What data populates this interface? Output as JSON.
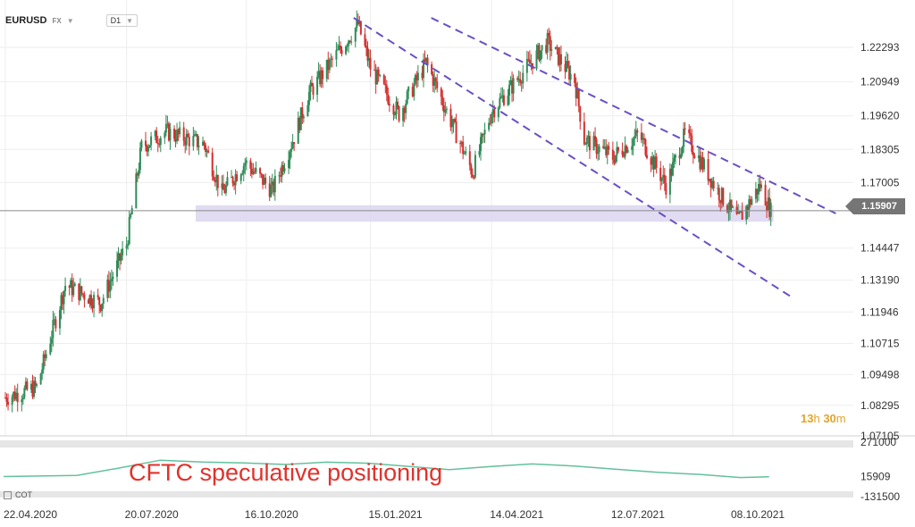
{
  "toolbar": {
    "symbol": "EURUSD",
    "market": "FX",
    "timeframe": "D1"
  },
  "countdown": {
    "hours": "13",
    "h_unit": "h",
    "minutes": "30",
    "m_unit": "m"
  },
  "indicator": {
    "label": "CFTC speculative positioning",
    "name": "COT"
  },
  "current_price": "1.15907",
  "colors": {
    "up": "#2e8b57",
    "down": "#d32f2f",
    "channel": "#6a4fc4",
    "zone": "#dcd6f0",
    "cot_line": "#62c19b",
    "grid": "#eeeeee"
  },
  "chart_data": [
    {
      "type": "candlestick",
      "title": "",
      "x_tick_labels": [
        "22.04.2020",
        "20.07.2020",
        "16.10.2020",
        "15.01.2021",
        "14.04.2021",
        "12.07.2021",
        "08.10.2021"
      ],
      "y_tick_labels": [
        "1.22293",
        "1.20949",
        "1.19620",
        "1.18305",
        "1.17005",
        "1.15907",
        "1.14447",
        "1.13190",
        "1.11946",
        "1.10715",
        "1.09498",
        "1.08295",
        "1.07105"
      ],
      "ylim": [
        1.071,
        1.2345
      ],
      "grid": true,
      "close_path": [
        {
          "date": "22.04.2020",
          "close": 1.086
        },
        {
          "date": "15.05.2020",
          "close": 1.09
        },
        {
          "date": "05.06.2020",
          "close": 1.13
        },
        {
          "date": "01.07.2020",
          "close": 1.123
        },
        {
          "date": "20.07.2020",
          "close": 1.146
        },
        {
          "date": "31.07.2020",
          "close": 1.184
        },
        {
          "date": "18.08.2020",
          "close": 1.19
        },
        {
          "date": "15.09.2020",
          "close": 1.185
        },
        {
          "date": "28.09.2020",
          "close": 1.166
        },
        {
          "date": "15.10.2020",
          "close": 1.178
        },
        {
          "date": "04.11.2020",
          "close": 1.167
        },
        {
          "date": "20.11.2020",
          "close": 1.188
        },
        {
          "date": "01.12.2020",
          "close": 1.205
        },
        {
          "date": "06.01.2021",
          "close": 1.232
        },
        {
          "date": "15.01.2021",
          "close": 1.215
        },
        {
          "date": "05.02.2021",
          "close": 1.197
        },
        {
          "date": "25.02.2021",
          "close": 1.217
        },
        {
          "date": "31.03.2021",
          "close": 1.174
        },
        {
          "date": "14.04.2021",
          "close": 1.198
        },
        {
          "date": "25.05.2021",
          "close": 1.225
        },
        {
          "date": "14.06.2021",
          "close": 1.21
        },
        {
          "date": "21.06.2021",
          "close": 1.187
        },
        {
          "date": "12.07.2021",
          "close": 1.18
        },
        {
          "date": "31.07.2021",
          "close": 1.189
        },
        {
          "date": "20.08.2021",
          "close": 1.169
        },
        {
          "date": "03.09.2021",
          "close": 1.189
        },
        {
          "date": "28.09.2021",
          "close": 1.166
        },
        {
          "date": "12.10.2021",
          "close": 1.155
        },
        {
          "date": "28.10.2021",
          "close": 1.169
        },
        {
          "date": "05.11.2021",
          "close": 1.159
        }
      ],
      "support_zone": [
        1.1548,
        1.1612
      ],
      "channel_lines": [
        {
          "from": {
            "date": "04.01.2021",
            "value": 1.2345
          },
          "to": {
            "date": "23.11.2021",
            "value": 1.1248
          }
        },
        {
          "from": {
            "date": "02.03.2021",
            "value": 1.2345
          },
          "to": {
            "date": "24.12.2021",
            "value": 1.158
          }
        }
      ],
      "current_price": 1.15907
    },
    {
      "type": "line",
      "title": "CFTC speculative positioning",
      "y_tick_labels": [
        "271000",
        "15909",
        "-131500"
      ],
      "ylim": [
        -131500,
        271000
      ],
      "series": [
        {
          "name": "COT",
          "points": [
            {
              "date": "22.04.2020",
              "value": 17000
            },
            {
              "date": "15.06.2020",
              "value": 25000
            },
            {
              "date": "15.07.2020",
              "value": 78000
            },
            {
              "date": "15.08.2020",
              "value": 138000
            },
            {
              "date": "15.09.2020",
              "value": 124000
            },
            {
              "date": "15.10.2020",
              "value": 118000
            },
            {
              "date": "15.11.2020",
              "value": 106000
            },
            {
              "date": "15.12.2020",
              "value": 123000
            },
            {
              "date": "15.01.2021",
              "value": 115000
            },
            {
              "date": "15.03.2021",
              "value": 68000
            },
            {
              "date": "15.04.2021",
              "value": 91000
            },
            {
              "date": "15.05.2021",
              "value": 110000
            },
            {
              "date": "15.06.2021",
              "value": 95000
            },
            {
              "date": "15.07.2021",
              "value": 72000
            },
            {
              "date": "15.08.2021",
              "value": 48000
            },
            {
              "date": "15.09.2021",
              "value": 33000
            },
            {
              "date": "15.10.2021",
              "value": 10000
            },
            {
              "date": "05.11.2021",
              "value": 15909
            }
          ]
        }
      ]
    }
  ]
}
